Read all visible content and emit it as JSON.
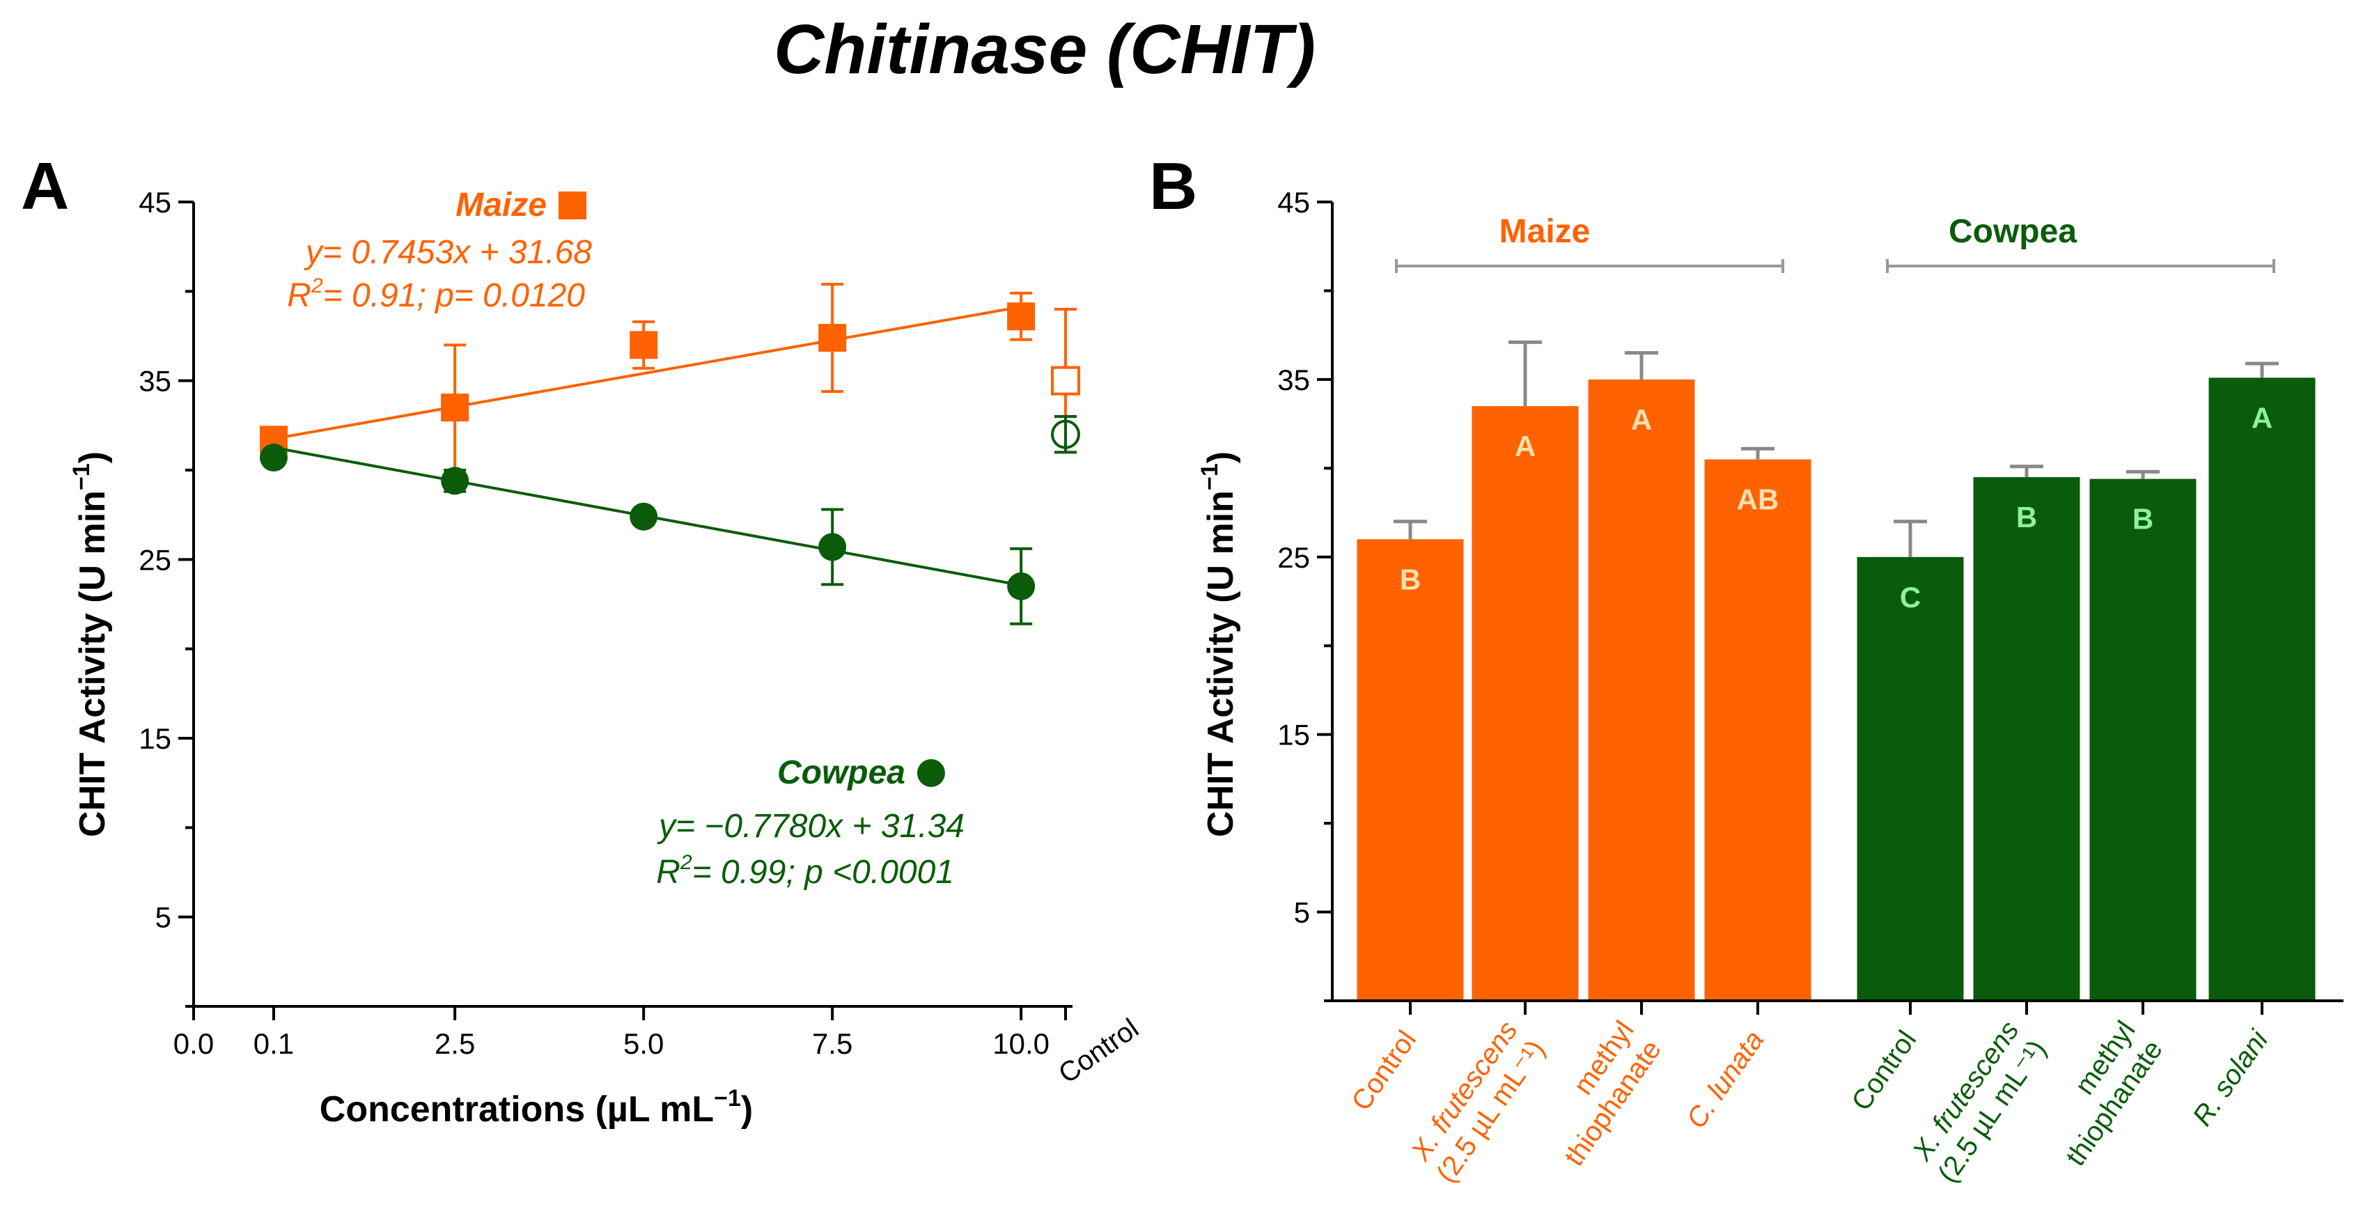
{
  "figure_title": "Chitinase (CHIT)",
  "colors": {
    "maize": "#ff6200",
    "cowpea": "#0a5c0a",
    "axis": "#000000",
    "bracket": "#999999",
    "maize_letter": "#ffe0b0",
    "cowpea_letter": "#90f0a0"
  },
  "panel_a": {
    "label": "A",
    "ylabel": "CHIT Activity (U min",
    "ylabel_sup": "−1",
    "ylabel_close": ")",
    "xlabel": "Concentrations (µL mL",
    "xlabel_sup": "−1",
    "xlabel_close": ")",
    "control_label": "Control",
    "maize_legend": "Maize",
    "maize_eq": "y= 0.7453x + 31.68",
    "maize_r2_a": "R",
    "maize_r2_sup": "2",
    "maize_r2_b": "= 0.91; p= 0.0120",
    "cowpea_legend": "Cowpea",
    "cowpea_eq": "y= −0.7780x + 31.34",
    "cowpea_r2_a": "R",
    "cowpea_r2_sup": "2",
    "cowpea_r2_b": "= 0.99; p <0.0001"
  },
  "panel_b": {
    "label": "B",
    "ylabel": "CHIT Activity (U min",
    "ylabel_sup": "−1",
    "ylabel_close": ")",
    "group_maize": "Maize",
    "group_cowpea": "Cowpea"
  },
  "chart_data": [
    {
      "type": "scatter",
      "title": "A",
      "xlabel": "Concentrations (µL mL−1)",
      "ylabel": "CHIT Activity (U min−1)",
      "ylim": [
        0,
        45
      ],
      "yticks": [
        5,
        15,
        25,
        35,
        45
      ],
      "xticks": [
        "0.0",
        "0.1",
        "2.5",
        "5.0",
        "7.5",
        "10.0",
        "Control"
      ],
      "series": [
        {
          "name": "Maize",
          "x": [
            0.1,
            2.5,
            5.0,
            7.5,
            10.0
          ],
          "y": [
            31.7,
            33.5,
            37.0,
            37.4,
            38.6
          ],
          "err": [
            0.5,
            3.5,
            1.3,
            3.0,
            1.3
          ],
          "fit": {
            "slope": 0.7453,
            "intercept": 31.68
          },
          "control": {
            "y": 35.0,
            "err": 4.0
          }
        },
        {
          "name": "Cowpea",
          "x": [
            0.1,
            2.5,
            5.0,
            7.5,
            10.0
          ],
          "y": [
            30.7,
            29.4,
            27.4,
            25.7,
            23.5
          ],
          "err": [
            0.3,
            0.6,
            0.3,
            2.1,
            2.1
          ],
          "fit": {
            "slope": -0.778,
            "intercept": 31.34
          },
          "control": {
            "y": 32.0,
            "err": 1.0
          }
        }
      ]
    },
    {
      "type": "bar",
      "title": "B",
      "ylabel": "CHIT Activity (U min−1)",
      "ylim": [
        0,
        45
      ],
      "yticks": [
        5,
        15,
        25,
        35,
        45
      ],
      "bars": [
        {
          "group": "Maize",
          "cat": [
            "Control"
          ],
          "cat_italic": [
            false
          ],
          "value": 26.0,
          "err": 1.0,
          "letter": "B"
        },
        {
          "group": "Maize",
          "cat": [
            "X. frutescens",
            "(2.5 µL mL⁻¹)"
          ],
          "cat_italic": [
            true,
            false
          ],
          "value": 33.5,
          "err": 3.6,
          "letter": "A"
        },
        {
          "group": "Maize",
          "cat": [
            "methyl",
            "thiophanate"
          ],
          "cat_italic": [
            false,
            false
          ],
          "value": 35.0,
          "err": 1.5,
          "letter": "A"
        },
        {
          "group": "Maize",
          "cat": [
            "C. lunata"
          ],
          "cat_italic": [
            true
          ],
          "value": 30.5,
          "err": 0.6,
          "letter": "AB"
        },
        {
          "group": "Cowpea",
          "cat": [
            "Control"
          ],
          "cat_italic": [
            false
          ],
          "value": 25.0,
          "err": 2.0,
          "letter": "C"
        },
        {
          "group": "Cowpea",
          "cat": [
            "X. frutescens",
            "(2.5 µL mL⁻¹)"
          ],
          "cat_italic": [
            true,
            false
          ],
          "value": 29.5,
          "err": 0.6,
          "letter": "B"
        },
        {
          "group": "Cowpea",
          "cat": [
            "methyl",
            "thiophanate"
          ],
          "cat_italic": [
            false,
            false
          ],
          "value": 29.4,
          "err": 0.4,
          "letter": "B"
        },
        {
          "group": "Cowpea",
          "cat": [
            "R. solani"
          ],
          "cat_italic": [
            true
          ],
          "value": 35.1,
          "err": 0.8,
          "letter": "A"
        }
      ]
    }
  ]
}
